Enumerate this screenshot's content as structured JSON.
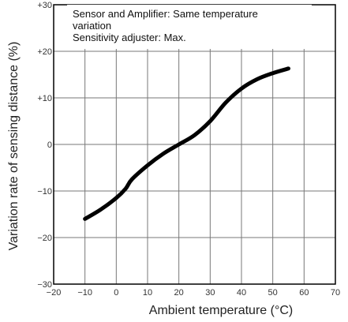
{
  "chart_data": {
    "type": "line",
    "xlabel": "Ambient temperature (°C)",
    "ylabel": "Variation rate of sensing distance (%)",
    "xlim": [
      -20,
      70
    ],
    "ylim": [
      -30,
      30
    ],
    "x_ticks": [
      "−20",
      "−10",
      "0",
      "10",
      "20",
      "30",
      "40",
      "50",
      "60",
      "70"
    ],
    "y_ticks": [
      "−30",
      "−20",
      "−10",
      "0",
      "+10",
      "+20",
      "+30"
    ],
    "grid": true,
    "annotation_lines": [
      "Sensor and Amplifier: Same temperature",
      "variation",
      "Sensitivity adjuster: Max."
    ],
    "series": [
      {
        "x": [
          -10,
          -5,
          0,
          3,
          5,
          10,
          15,
          20,
          25,
          30,
          35,
          40,
          45,
          50,
          55
        ],
        "y": [
          -16,
          -14,
          -11.5,
          -9.5,
          -7.5,
          -4.5,
          -2,
          0,
          2,
          5,
          9,
          12,
          14,
          15.3,
          16.3
        ]
      }
    ],
    "line_color": "#000000",
    "grid_color": "#777777"
  }
}
